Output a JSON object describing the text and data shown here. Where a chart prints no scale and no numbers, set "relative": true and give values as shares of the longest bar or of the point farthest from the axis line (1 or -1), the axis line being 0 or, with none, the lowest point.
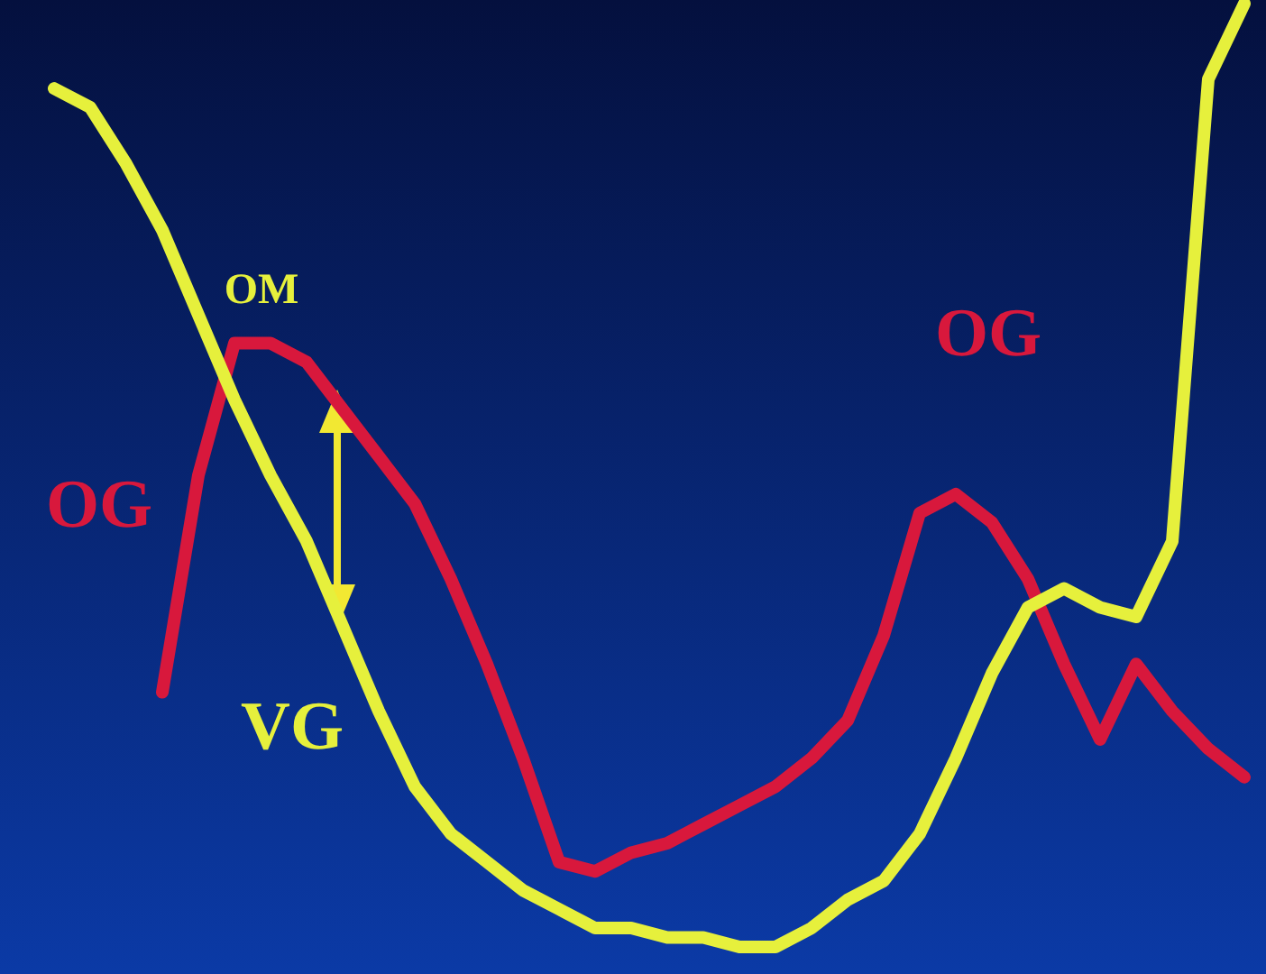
{
  "chart_data": {
    "type": "line",
    "relative": true,
    "categories": [
      null,
      null,
      null,
      null,
      null,
      null,
      null,
      null,
      null,
      null,
      null,
      null,
      null,
      null,
      null,
      null,
      null,
      null,
      null,
      null,
      null,
      null,
      null,
      null,
      null,
      null,
      null,
      null,
      null,
      null,
      null,
      null,
      null,
      null
    ],
    "series": [
      {
        "name": "OG",
        "color": "#d8183c",
        "values": [
          null,
          null,
          null,
          0.27,
          0.5,
          0.64,
          0.64,
          0.62,
          0.57,
          0.52,
          0.47,
          0.39,
          0.3,
          0.2,
          0.09,
          0.08,
          0.1,
          0.11,
          0.13,
          0.15,
          0.17,
          0.2,
          0.24,
          0.33,
          0.46,
          0.48,
          0.45,
          0.39,
          0.3,
          0.22,
          0.3,
          0.25,
          0.21,
          0.18
        ]
      },
      {
        "name": "VG",
        "color": "#e6f03c",
        "values": [
          0.91,
          0.89,
          0.83,
          0.76,
          0.67,
          0.58,
          0.5,
          0.43,
          0.34,
          0.25,
          0.17,
          0.12,
          0.09,
          0.06,
          0.04,
          0.02,
          0.02,
          0.01,
          0.01,
          0,
          0,
          0.02,
          0.05,
          0.07,
          0.12,
          0.2,
          0.29,
          0.36,
          0.38,
          0.36,
          0.35,
          0.43,
          0.92,
          1
        ]
      }
    ],
    "annotations": [
      "OM",
      "OG"
    ]
  }
}
